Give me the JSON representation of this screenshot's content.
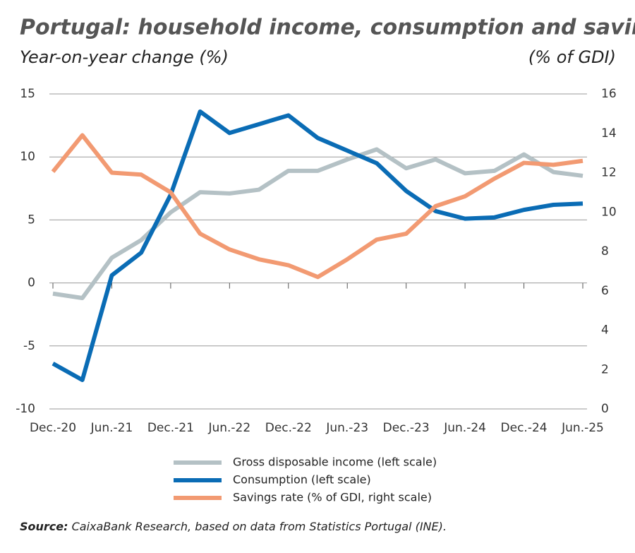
{
  "chart_data": {
    "type": "line",
    "title": "Portugal: household income, consumption and savings",
    "y_label": "Year-on-year change (%)",
    "y2_label": "(% of GDI)",
    "source_label": "Source:",
    "source": "CaixaBank Research, based on data from Statistics Portugal (INE).",
    "categories": [
      "Dec.-20",
      null,
      "Jun.-21",
      null,
      "Dec.-21",
      null,
      "Jun.-22",
      null,
      "Dec.-22",
      null,
      "Jun.-23",
      null,
      "Dec.-23",
      null,
      "Jun.-24",
      null,
      "Dec.-24",
      null,
      "Jun.-25"
    ],
    "ylim": [
      -10,
      15
    ],
    "yticks": [
      -10,
      -5,
      0,
      5,
      10,
      15
    ],
    "y2lim": [
      0,
      16
    ],
    "y2ticks": [
      0,
      2,
      4,
      6,
      8,
      10,
      12,
      14,
      16
    ],
    "grid": true,
    "series": [
      {
        "name": "Gross disposable income (left scale)",
        "color": "#b4c1c5",
        "values": [
          -0.85,
          -1.2,
          2.0,
          3.4,
          5.6,
          7.2,
          7.1,
          7.4,
          8.9,
          8.9,
          9.8,
          10.6,
          9.1,
          9.8,
          8.7,
          8.9,
          10.2,
          8.8,
          8.5
        ]
      },
      {
        "name": "Consumption (left scale)",
        "color": "#0a6cb5",
        "values": [
          -6.4,
          -7.7,
          0.6,
          2.4,
          7.0,
          13.6,
          11.9,
          12.6,
          13.3,
          11.5,
          10.5,
          9.5,
          7.3,
          5.7,
          5.1,
          5.2,
          5.8,
          6.2,
          6.3
        ]
      },
      {
        "name": "Savings rate (% of GDI, right scale)",
        "color": "#f29a72",
        "axis": "y2",
        "values": [
          12.05,
          13.9,
          12.0,
          11.9,
          11.0,
          8.9,
          8.1,
          7.6,
          7.3,
          6.7,
          7.6,
          8.6,
          8.9,
          10.3,
          10.8,
          11.7,
          12.5,
          12.4,
          12.6
        ]
      }
    ]
  }
}
